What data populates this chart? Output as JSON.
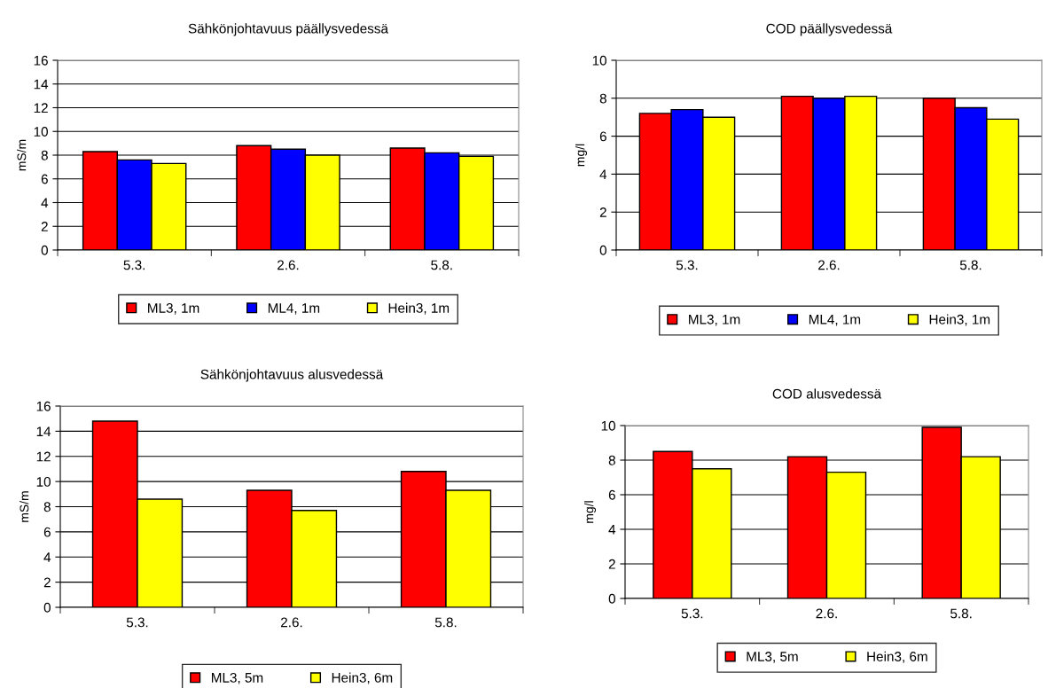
{
  "chart_data": [
    {
      "type": "bar",
      "title": "Sähkönjohtavuus päällysvedessä",
      "ylabel": "mS/m",
      "categories": [
        "5.3.",
        "2.6.",
        "5.8."
      ],
      "series": [
        {
          "name": "ML3, 1m",
          "color": "#ff0000",
          "values": [
            8.3,
            8.8,
            8.6
          ]
        },
        {
          "name": "ML4, 1m",
          "color": "#0000ff",
          "values": [
            7.6,
            8.5,
            8.2
          ]
        },
        {
          "name": "Hein3, 1m",
          "color": "#ffff00",
          "values": [
            7.3,
            8.0,
            7.9
          ]
        }
      ],
      "ylim": [
        0,
        16
      ],
      "yticks": [
        0,
        2,
        4,
        6,
        8,
        10,
        12,
        14,
        16
      ],
      "grid": "y",
      "legend": "bottom"
    },
    {
      "type": "bar",
      "title": "COD päällysvedessä",
      "ylabel": "mg/l",
      "categories": [
        "5.3.",
        "2.6.",
        "5.8."
      ],
      "series": [
        {
          "name": "ML3, 1m",
          "color": "#ff0000",
          "values": [
            7.2,
            8.1,
            8.0
          ]
        },
        {
          "name": "ML4, 1m",
          "color": "#0000ff",
          "values": [
            7.4,
            8.0,
            7.5
          ]
        },
        {
          "name": "Hein3, 1m",
          "color": "#ffff00",
          "values": [
            7.0,
            8.1,
            6.9
          ]
        }
      ],
      "ylim": [
        0,
        10
      ],
      "yticks": [
        0,
        2,
        4,
        6,
        8,
        10
      ],
      "grid": "y",
      "legend": "bottom"
    },
    {
      "type": "bar",
      "title": "Sähkönjohtavuus alusvedessä",
      "ylabel": "mS/m",
      "categories": [
        "5.3.",
        "2.6.",
        "5.8."
      ],
      "series": [
        {
          "name": "ML3, 5m",
          "color": "#ff0000",
          "values": [
            14.8,
            9.3,
            10.8
          ]
        },
        {
          "name": "Hein3, 6m",
          "color": "#ffff00",
          "values": [
            8.6,
            7.7,
            9.3
          ]
        }
      ],
      "ylim": [
        0,
        16
      ],
      "yticks": [
        0,
        2,
        4,
        6,
        8,
        10,
        12,
        14,
        16
      ],
      "grid": "y",
      "legend": "bottom"
    },
    {
      "type": "bar",
      "title": "COD alusvedessä",
      "ylabel": "mg/l",
      "categories": [
        "5.3.",
        "2.6.",
        "5.8."
      ],
      "series": [
        {
          "name": "ML3, 5m",
          "color": "#ff0000",
          "values": [
            8.5,
            8.2,
            9.9
          ]
        },
        {
          "name": "Hein3, 6m",
          "color": "#ffff00",
          "values": [
            7.5,
            7.3,
            8.2
          ]
        }
      ],
      "ylim": [
        0,
        10
      ],
      "yticks": [
        0,
        2,
        4,
        6,
        8,
        10
      ],
      "grid": "y",
      "legend": "bottom"
    }
  ]
}
